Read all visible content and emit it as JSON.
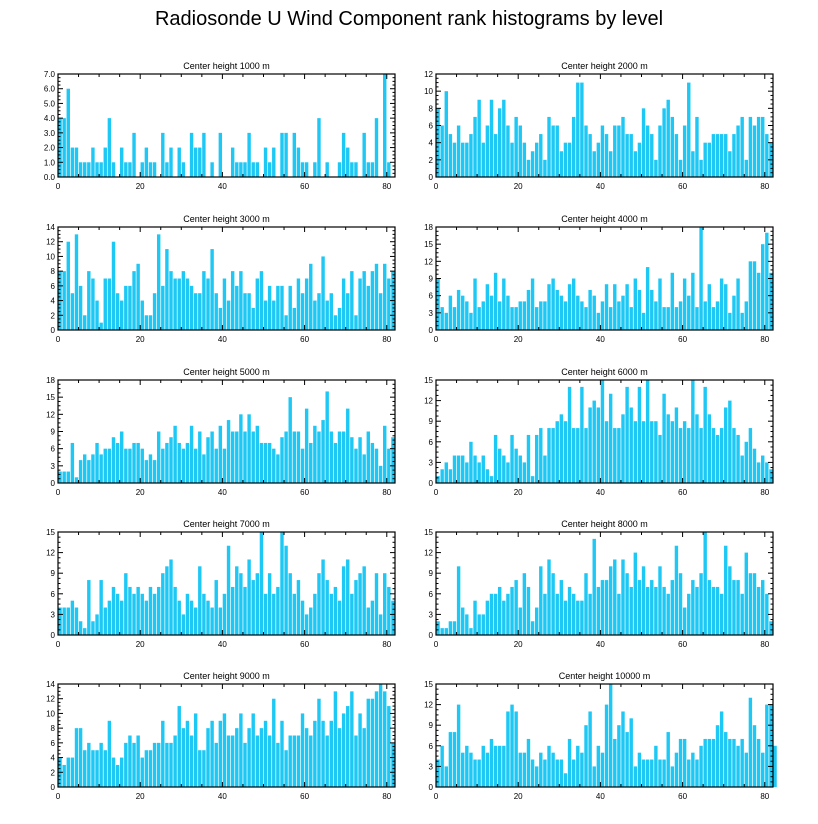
{
  "figure": {
    "title": "Radiosonde U Wind Component rank histograms by level",
    "bar_color": "#1ec8f5"
  },
  "chart_data": [
    {
      "type": "bar",
      "title": "Center height 1000 m",
      "xlim": [
        0,
        82
      ],
      "xticks": [
        0,
        20,
        40,
        60,
        80
      ],
      "ylim": [
        0,
        7
      ],
      "yticks": [
        "0.0",
        "1.0",
        "2.0",
        "3.0",
        "4.0",
        "5.0",
        "6.0",
        "7.0"
      ],
      "values": [
        4,
        4,
        6,
        2,
        2,
        1,
        1,
        1,
        2,
        1,
        1,
        2,
        4,
        1,
        0,
        2,
        1,
        1,
        3,
        0,
        1,
        2,
        1,
        1,
        0,
        3,
        1,
        2,
        0,
        2,
        1,
        0,
        3,
        2,
        2,
        3,
        0,
        1,
        0,
        3,
        0,
        0,
        2,
        1,
        1,
        1,
        3,
        1,
        1,
        0,
        2,
        1,
        2,
        0,
        3,
        3,
        0,
        3,
        2,
        1,
        1,
        0,
        1,
        4,
        0,
        1,
        0,
        0,
        1,
        3,
        2,
        1,
        1,
        0,
        3,
        1,
        1,
        4,
        0,
        7,
        1,
        0
      ]
    },
    {
      "type": "bar",
      "title": "Center height 2000 m",
      "xlim": [
        0,
        82
      ],
      "xticks": [
        0,
        20,
        40,
        60,
        80
      ],
      "ylim": [
        0,
        12
      ],
      "yticks": [
        "0",
        "2",
        "4",
        "6",
        "8",
        "10",
        "12"
      ],
      "values": [
        8,
        6,
        10,
        5,
        4,
        6,
        4,
        4,
        5,
        7,
        9,
        4,
        6,
        9,
        5,
        8,
        9,
        6,
        4,
        7,
        6,
        4,
        2,
        3,
        4,
        5,
        2,
        7,
        6,
        6,
        3,
        4,
        4,
        7,
        11,
        11,
        6,
        5,
        3,
        4,
        6,
        5,
        3,
        6,
        6,
        7,
        5,
        5,
        3,
        4,
        8,
        6,
        5,
        2,
        6,
        8,
        9,
        7,
        5,
        2,
        6,
        11,
        3,
        7,
        2,
        4,
        4,
        5,
        5,
        5,
        5,
        3,
        5,
        6,
        7,
        2,
        7,
        6,
        7,
        7,
        5,
        4
      ]
    },
    {
      "type": "bar",
      "title": "Center height 3000 m",
      "xlim": [
        0,
        82
      ],
      "xticks": [
        0,
        20,
        40,
        60,
        80
      ],
      "ylim": [
        0,
        14
      ],
      "yticks": [
        "0",
        "2",
        "4",
        "6",
        "8",
        "10",
        "12",
        "14"
      ],
      "values": [
        8,
        8,
        12,
        5,
        13,
        6,
        2,
        8,
        7,
        4,
        1,
        7,
        7,
        12,
        5,
        4,
        6,
        6,
        8,
        9,
        4,
        2,
        2,
        5,
        13,
        6,
        11,
        8,
        7,
        7,
        8,
        7,
        6,
        5,
        5,
        8,
        7,
        11,
        5,
        3,
        7,
        4,
        8,
        6,
        8,
        5,
        5,
        3,
        7,
        8,
        4,
        6,
        4,
        6,
        6,
        2,
        6,
        3,
        7,
        5,
        7,
        9,
        4,
        5,
        10,
        4,
        5,
        2,
        3,
        7,
        5,
        8,
        2,
        7,
        8,
        6,
        8,
        9,
        5,
        9,
        7,
        8
      ]
    },
    {
      "type": "bar",
      "title": "Center height 4000 m",
      "xlim": [
        0,
        82
      ],
      "xticks": [
        0,
        20,
        40,
        60,
        80
      ],
      "ylim": [
        0,
        18
      ],
      "yticks": [
        "0",
        "3",
        "6",
        "9",
        "12",
        "15",
        "18"
      ],
      "values": [
        9,
        4,
        3,
        6,
        4,
        7,
        6,
        5,
        3,
        9,
        4,
        5,
        8,
        6,
        10,
        5,
        9,
        6,
        4,
        4,
        5,
        5,
        7,
        9,
        4,
        5,
        5,
        8,
        9,
        7,
        6,
        5,
        8,
        9,
        6,
        5,
        4,
        7,
        6,
        3,
        5,
        8,
        4,
        8,
        5,
        6,
        8,
        4,
        9,
        7,
        3,
        11,
        7,
        5,
        9,
        4,
        4,
        10,
        4,
        5,
        9,
        6,
        10,
        4,
        18,
        5,
        8,
        4,
        5,
        9,
        8,
        3,
        6,
        9,
        3,
        5,
        12,
        12,
        10,
        15,
        17,
        10
      ]
    },
    {
      "type": "bar",
      "title": "Center height 5000 m",
      "xlim": [
        0,
        82
      ],
      "xticks": [
        0,
        20,
        40,
        60,
        80
      ],
      "ylim": [
        0,
        18
      ],
      "yticks": [
        "0",
        "3",
        "6",
        "9",
        "12",
        "15",
        "18"
      ],
      "values": [
        2,
        2,
        2,
        7,
        1,
        4,
        5,
        4,
        5,
        7,
        5,
        6,
        6,
        8,
        7,
        9,
        6,
        6,
        7,
        7,
        6,
        4,
        5,
        4,
        9,
        6,
        7,
        8,
        10,
        7,
        6,
        7,
        10,
        6,
        9,
        5,
        8,
        9,
        6,
        10,
        6,
        11,
        9,
        9,
        12,
        9,
        12,
        9,
        10,
        7,
        7,
        7,
        6,
        5,
        8,
        9,
        15,
        9,
        9,
        6,
        13,
        7,
        10,
        9,
        11,
        16,
        9,
        7,
        9,
        9,
        13,
        8,
        6,
        8,
        5,
        9,
        7,
        6,
        3,
        10,
        6,
        8
      ]
    },
    {
      "type": "bar",
      "title": "Center height 6000 m",
      "xlim": [
        0,
        82
      ],
      "xticks": [
        0,
        20,
        40,
        60,
        80
      ],
      "ylim": [
        0,
        15
      ],
      "yticks": [
        "0",
        "3",
        "6",
        "9",
        "12",
        "15"
      ],
      "values": [
        1,
        2,
        3,
        2,
        4,
        4,
        4,
        3,
        6,
        4,
        3,
        4,
        2,
        1,
        7,
        5,
        4,
        3,
        7,
        5,
        4,
        3,
        7,
        1,
        7,
        8,
        4,
        8,
        8,
        9,
        10,
        9,
        14,
        8,
        8,
        14,
        8,
        11,
        12,
        11,
        15,
        9,
        13,
        8,
        8,
        10,
        14,
        11,
        9,
        14,
        9,
        15,
        9,
        9,
        7,
        13,
        10,
        9,
        11,
        8,
        9,
        8,
        15,
        10,
        8,
        14,
        10,
        8,
        7,
        8,
        11,
        12,
        8,
        7,
        4,
        6,
        8,
        5,
        3,
        4,
        3,
        2
      ]
    },
    {
      "type": "bar",
      "title": "Center height 7000 m",
      "xlim": [
        0,
        82
      ],
      "xticks": [
        0,
        20,
        40,
        60,
        80
      ],
      "ylim": [
        0,
        15
      ],
      "yticks": [
        "0",
        "3",
        "6",
        "9",
        "12",
        "15"
      ],
      "values": [
        4,
        4,
        4,
        5,
        4,
        2,
        1,
        8,
        2,
        3,
        8,
        4,
        5,
        7,
        6,
        5,
        9,
        7,
        6,
        7,
        6,
        5,
        7,
        6,
        7,
        9,
        10,
        11,
        7,
        5,
        3,
        6,
        5,
        4,
        10,
        6,
        5,
        4,
        8,
        4,
        6,
        13,
        7,
        10,
        9,
        7,
        11,
        8,
        9,
        15,
        6,
        9,
        6,
        7,
        15,
        13,
        9,
        6,
        8,
        5,
        3,
        4,
        6,
        9,
        11,
        8,
        6,
        7,
        5,
        10,
        11,
        6,
        8,
        9,
        10,
        4,
        5,
        9,
        3,
        9,
        7,
        5
      ]
    },
    {
      "type": "bar",
      "title": "Center height 8000 m",
      "xlim": [
        0,
        82
      ],
      "xticks": [
        0,
        20,
        40,
        60,
        80
      ],
      "ylim": [
        0,
        15
      ],
      "yticks": [
        "0",
        "3",
        "6",
        "9",
        "12",
        "15"
      ],
      "values": [
        2,
        1,
        1,
        2,
        2,
        10,
        4,
        3,
        1,
        5,
        3,
        3,
        5,
        6,
        6,
        7,
        5,
        6,
        7,
        8,
        4,
        9,
        7,
        2,
        4,
        10,
        6,
        11,
        9,
        6,
        8,
        5,
        7,
        6,
        5,
        5,
        9,
        6,
        14,
        7,
        8,
        8,
        10,
        11,
        6,
        11,
        9,
        7,
        12,
        8,
        10,
        7,
        8,
        7,
        10,
        7,
        6,
        8,
        13,
        9,
        4,
        6,
        8,
        7,
        9,
        15,
        8,
        7,
        7,
        6,
        13,
        10,
        8,
        8,
        6,
        12,
        9,
        9,
        7,
        8,
        6,
        2
      ]
    },
    {
      "type": "bar",
      "title": "Center height 9000 m",
      "xlim": [
        0,
        82
      ],
      "xticks": [
        0,
        20,
        40,
        60,
        80
      ],
      "ylim": [
        0,
        14
      ],
      "yticks": [
        "0",
        "2",
        "4",
        "6",
        "8",
        "10",
        "12",
        "14"
      ],
      "values": [
        4,
        3,
        4,
        4,
        8,
        8,
        5,
        6,
        5,
        5,
        6,
        5,
        9,
        4,
        3,
        4,
        6,
        7,
        6,
        7,
        4,
        5,
        5,
        6,
        6,
        9,
        6,
        6,
        7,
        11,
        8,
        9,
        7,
        10,
        5,
        5,
        8,
        9,
        6,
        9,
        10,
        7,
        7,
        8,
        10,
        6,
        8,
        10,
        7,
        8,
        9,
        7,
        12,
        6,
        9,
        5,
        7,
        7,
        7,
        10,
        8,
        7,
        9,
        12,
        9,
        7,
        9,
        13,
        8,
        10,
        11,
        13,
        7,
        10,
        8,
        12,
        12,
        13,
        14,
        13,
        11,
        6
      ]
    },
    {
      "type": "bar",
      "title": "Center height 10000 m",
      "xlim": [
        0,
        82
      ],
      "xticks": [
        0,
        20,
        40,
        60,
        80
      ],
      "ylim": [
        0,
        15
      ],
      "yticks": [
        "0",
        "3",
        "6",
        "9",
        "12",
        "15"
      ],
      "values": [
        4,
        6,
        3,
        8,
        8,
        12,
        5,
        6,
        5,
        4,
        4,
        6,
        5,
        7,
        6,
        6,
        6,
        11,
        12,
        11,
        5,
        5,
        7,
        4,
        3,
        5,
        4,
        6,
        5,
        4,
        4,
        2,
        7,
        4,
        6,
        5,
        9,
        11,
        3,
        6,
        5,
        12,
        15,
        7,
        9,
        11,
        8,
        10,
        3,
        5,
        4,
        4,
        4,
        6,
        4,
        4,
        8,
        3,
        5,
        7,
        7,
        4,
        5,
        4,
        6,
        7,
        7,
        7,
        9,
        11,
        8,
        7,
        7,
        6,
        7,
        5,
        13,
        9,
        7,
        5,
        12,
        12,
        6
      ]
    }
  ]
}
